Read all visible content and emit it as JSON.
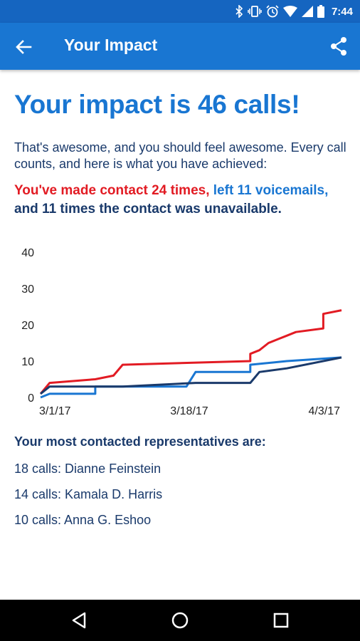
{
  "status_bar": {
    "time": "7:44"
  },
  "app_bar": {
    "title": "Your Impact",
    "back_icon": "arrow-back-icon",
    "share_icon": "share-icon"
  },
  "impact": {
    "headline": "Your impact is 46 calls!",
    "intro": "That's awesome, and you should feel awesome. Every call counts, and here is what you have achieved:",
    "contact_text": "You've made contact 24 times,",
    "voicemail_text": "left 11 voicemails,",
    "unavailable_text": "and 11 times the contact was unavailable."
  },
  "colors": {
    "contact": "#e21b23",
    "voicemail": "#1976d2",
    "unavailable": "#1a3a6b",
    "accent": "#1976d2"
  },
  "chart_data": {
    "type": "line",
    "x_ticks": [
      "3/1/17",
      "3/18/17",
      "4/3/17"
    ],
    "y_ticks": [
      "0",
      "10",
      "20",
      "30",
      "40"
    ],
    "ylim": [
      0,
      40
    ],
    "grid": false,
    "legend": "none",
    "series": [
      {
        "color": "#e21b23",
        "points": [
          [
            "2017-03-01",
            1
          ],
          [
            "2017-03-02",
            4
          ],
          [
            "2017-03-07",
            5
          ],
          [
            "2017-03-09",
            6
          ],
          [
            "2017-03-10",
            9
          ],
          [
            "2017-03-24",
            10
          ],
          [
            "2017-03-24",
            12
          ],
          [
            "2017-03-25",
            13
          ],
          [
            "2017-03-26",
            15
          ],
          [
            "2017-03-27",
            16
          ],
          [
            "2017-03-28",
            17
          ],
          [
            "2017-03-29",
            18
          ],
          [
            "2017-04-01",
            19
          ],
          [
            "2017-04-01",
            23
          ],
          [
            "2017-04-03",
            24
          ]
        ]
      },
      {
        "color": "#1976d2",
        "points": [
          [
            "2017-03-01",
            0
          ],
          [
            "2017-03-02",
            1
          ],
          [
            "2017-03-07",
            1
          ],
          [
            "2017-03-07",
            3
          ],
          [
            "2017-03-17",
            3
          ],
          [
            "2017-03-18",
            7
          ],
          [
            "2017-03-24",
            7
          ],
          [
            "2017-03-24",
            9
          ],
          [
            "2017-03-28",
            10
          ],
          [
            "2017-04-03",
            11
          ]
        ]
      },
      {
        "color": "#1a3a6b",
        "points": [
          [
            "2017-03-01",
            1
          ],
          [
            "2017-03-02",
            3
          ],
          [
            "2017-03-10",
            3
          ],
          [
            "2017-03-18",
            4
          ],
          [
            "2017-03-24",
            4
          ],
          [
            "2017-03-25",
            7
          ],
          [
            "2017-03-28",
            8
          ],
          [
            "2017-04-03",
            11
          ]
        ]
      }
    ]
  },
  "representatives": {
    "title": "Your most contacted representatives are:",
    "items": [
      "18 calls: Dianne Feinstein",
      "14 calls: Kamala D. Harris",
      "10 calls: Anna G. Eshoo"
    ]
  },
  "nav_bar": {
    "back": "nav-back-icon",
    "home": "nav-home-icon",
    "recents": "nav-recents-icon"
  }
}
